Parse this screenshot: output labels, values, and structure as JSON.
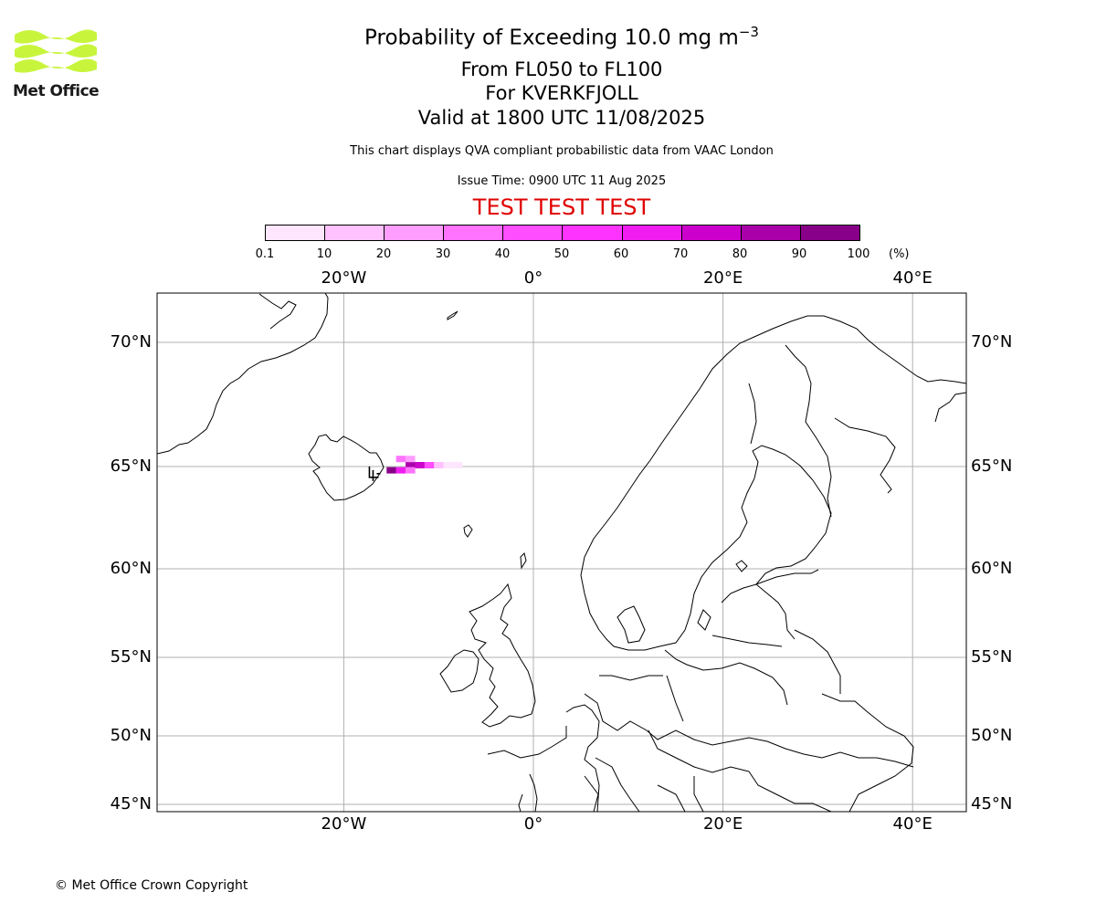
{
  "logo": {
    "text": "Met Office",
    "color": "#c8f53c"
  },
  "title": {
    "main": "Probability of Exceeding 10.0 mg m",
    "main_sup": "−3",
    "levels": "From FL050 to FL100",
    "volcano": "For KVERKFJOLL",
    "valid": "Valid at 1800 UTC 11/08/2025",
    "description": "This chart displays QVA compliant probabilistic data from VAAC London",
    "issue": "Issue Time: 0900 UTC 11 Aug 2025",
    "test_banner": "TEST TEST TEST"
  },
  "colorbar": {
    "ticks": [
      "0.1",
      "10",
      "20",
      "30",
      "40",
      "50",
      "60",
      "70",
      "80",
      "90",
      "100"
    ],
    "unit": "(%)",
    "colors": [
      "#ffe6ff",
      "#ffc2ff",
      "#ff9eff",
      "#ff73ff",
      "#ff4dff",
      "#ff33ff",
      "#f01cf0",
      "#cc00cc",
      "#aa00aa",
      "#880088",
      "#660066"
    ]
  },
  "map": {
    "lon_labels": [
      "20°W",
      "0°",
      "20°E",
      "40°E"
    ],
    "lat_labels": [
      "70°N",
      "65°N",
      "60°N",
      "55°N",
      "50°N",
      "45°N"
    ],
    "extent": {
      "lon_min": -40,
      "lon_max": 45,
      "lat_min": 45,
      "lat_max": 72
    },
    "grid": true,
    "volcano_name": "KVERKFJOLL",
    "volcano_lat": 64.65,
    "volcano_lon": -16.72,
    "probability_cells": [
      {
        "lat": 65.0,
        "lon": -13.0,
        "band": 8
      },
      {
        "lat": 65.0,
        "lon": -12.0,
        "band": 7
      },
      {
        "lat": 65.0,
        "lon": -11.0,
        "band": 4
      },
      {
        "lat": 65.0,
        "lon": -10.0,
        "band": 1
      },
      {
        "lat": 65.0,
        "lon": -9.0,
        "band": 0
      },
      {
        "lat": 65.0,
        "lon": -8.0,
        "band": 0
      },
      {
        "lat": 65.25,
        "lon": -14.0,
        "band": 3
      },
      {
        "lat": 65.25,
        "lon": -13.0,
        "band": 2
      },
      {
        "lat": 64.75,
        "lon": -15.0,
        "band": 9
      },
      {
        "lat": 64.75,
        "lon": -14.0,
        "band": 6
      },
      {
        "lat": 64.75,
        "lon": -13.0,
        "band": 3
      }
    ]
  },
  "footer": {
    "copyright": "© Met Office Crown Copyright"
  }
}
